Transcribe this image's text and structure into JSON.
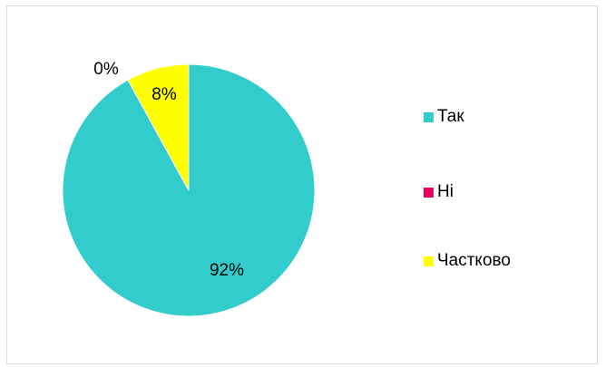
{
  "chart_data": {
    "type": "pie",
    "categories": [
      "Так",
      "Ні",
      "Частково"
    ],
    "values": [
      92,
      0,
      8
    ],
    "value_labels": [
      "92%",
      "0%",
      "8%"
    ],
    "colors": [
      "#33CCCC",
      "#E6005C",
      "#FFFF00"
    ],
    "legend_placement": "right"
  }
}
